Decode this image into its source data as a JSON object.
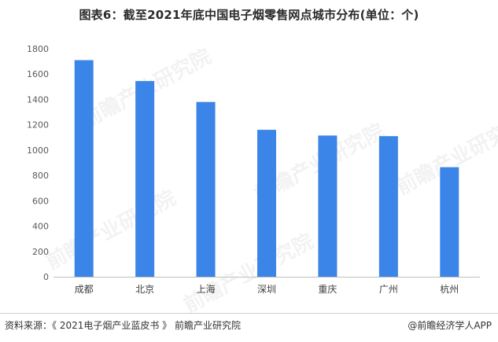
{
  "chart_data": {
    "type": "bar",
    "title": "图表6：截至2021年底中国电子烟零售网点城市分布(单位：个)",
    "categories": [
      "成都",
      "北京",
      "上海",
      "深圳",
      "重庆",
      "广州",
      "杭州"
    ],
    "values": [
      1710,
      1545,
      1380,
      1160,
      1115,
      1110,
      865
    ],
    "ylim": [
      0,
      1800
    ],
    "yticks": [
      0,
      200,
      400,
      600,
      800,
      1000,
      1200,
      1400,
      1600,
      1800
    ],
    "xlabel": "",
    "ylabel": "",
    "grid": false,
    "bar_color": "#3c85e8"
  },
  "watermark": {
    "text": "前瞻产业研究院"
  },
  "footer": {
    "source": "资料来源：《 2021电子烟产业蓝皮书 》 前瞻产业研究院",
    "credit": "@前瞻经济学人APP"
  }
}
